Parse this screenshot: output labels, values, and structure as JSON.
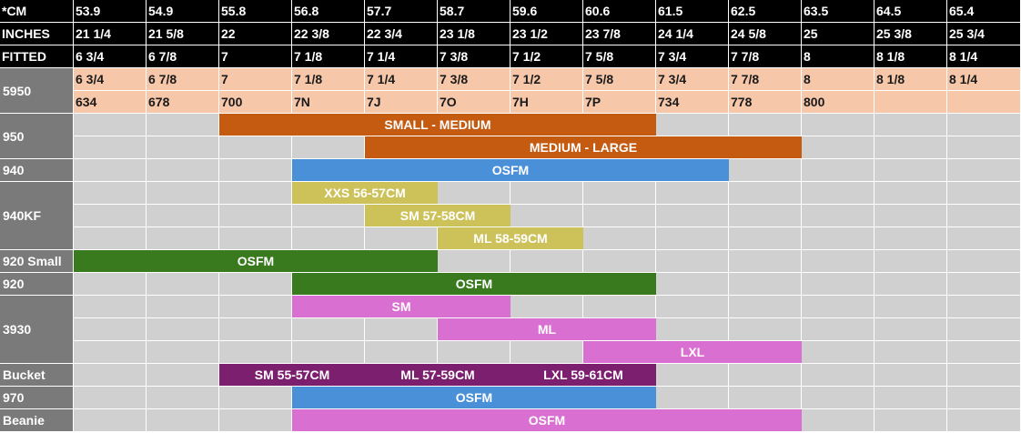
{
  "header_rows": [
    {
      "label": "*CM",
      "values": [
        "53.9",
        "54.9",
        "55.8",
        "56.8",
        "57.7",
        "58.7",
        "59.6",
        "60.6",
        "61.5",
        "62.5",
        "63.5",
        "64.5",
        "65.4"
      ]
    },
    {
      "label": "INCHES",
      "values": [
        "21 1/4",
        "21 5/8",
        "22",
        "22 3/8",
        "22 3/4",
        "23 1/8",
        "23 1/2",
        "23 7/8",
        "24 1/4",
        "24 5/8",
        "25",
        "25 3/8",
        "25 3/4"
      ]
    },
    {
      "label": "FITTED",
      "values": [
        "6 3/4",
        "6 7/8",
        "7",
        "7 1/8",
        "7 1/4",
        "7 3/8",
        "7 1/2",
        "7 5/8",
        "7 3/4",
        "7 7/8",
        "8",
        "8 1/8",
        "8 1/4"
      ]
    }
  ],
  "model_5950": {
    "label": "5950",
    "sizes": [
      "6 3/4",
      "6 7/8",
      "7",
      "7 1/8",
      "7 1/4",
      "7 3/8",
      "7 1/2",
      "7 5/8",
      "7 3/4",
      "7 7/8",
      "8",
      "8 1/8",
      "8 1/4"
    ],
    "codes": [
      "634",
      "678",
      "700",
      "7N",
      "7J",
      "7O",
      "7H",
      "7P",
      "734",
      "778",
      "800",
      "",
      ""
    ]
  },
  "groups": [
    {
      "label": "950",
      "rows": 2
    },
    {
      "label": "940",
      "rows": 1
    },
    {
      "label": "940KF",
      "rows": 3
    },
    {
      "label": "920 Small",
      "rows": 1
    },
    {
      "label": "920",
      "rows": 1
    },
    {
      "label": "3930",
      "rows": 3
    },
    {
      "label": "Bucket",
      "rows": 1
    },
    {
      "label": "970",
      "rows": 1
    },
    {
      "label": "Beanie",
      "rows": 1
    }
  ],
  "bars": [
    {
      "row": 0,
      "start": 2,
      "end": 7,
      "label": "SMALL - MEDIUM",
      "color": "#c55a11"
    },
    {
      "row": 1,
      "start": 4,
      "end": 9,
      "label": "MEDIUM - LARGE",
      "color": "#c55a11"
    },
    {
      "row": 2,
      "start": 3,
      "end": 8,
      "label": "OSFM",
      "color": "#4a90d9"
    },
    {
      "row": 3,
      "start": 3,
      "end": 4,
      "label": "XXS 56-57CM",
      "color": "#cdc25a"
    },
    {
      "row": 4,
      "start": 4,
      "end": 5,
      "label": "SM 57-58CM",
      "color": "#cdc25a"
    },
    {
      "row": 5,
      "start": 5,
      "end": 6,
      "label": "ML 58-59CM",
      "color": "#cdc25a"
    },
    {
      "row": 6,
      "start": 0,
      "end": 4,
      "label": "OSFM",
      "color": "#3a7a1f"
    },
    {
      "row": 7,
      "start": 3,
      "end": 7,
      "label": "OSFM",
      "color": "#3a7a1f"
    },
    {
      "row": 8,
      "start": 3,
      "end": 5,
      "label": "SM",
      "color": "#d96fd0"
    },
    {
      "row": 9,
      "start": 5,
      "end": 7,
      "label": "ML",
      "color": "#d96fd0"
    },
    {
      "row": 10,
      "start": 7,
      "end": 9,
      "label": "LXL",
      "color": "#d96fd0"
    },
    {
      "row": 11,
      "start": 2,
      "end": 3,
      "label": "SM 55-57CM",
      "color": "#7b1f6e"
    },
    {
      "row": 11,
      "start": 4,
      "end": 5,
      "label": "ML 57-59CM",
      "color": "#7b1f6e"
    },
    {
      "row": 11,
      "start": 6,
      "end": 7,
      "label": "LXL 59-61CM",
      "color": "#7b1f6e"
    },
    {
      "row": 12,
      "start": 3,
      "end": 7,
      "label": "OSFM",
      "color": "#4a90d9"
    },
    {
      "row": 13,
      "start": 3,
      "end": 9,
      "label": "OSFM",
      "color": "#d96fd0"
    }
  ]
}
